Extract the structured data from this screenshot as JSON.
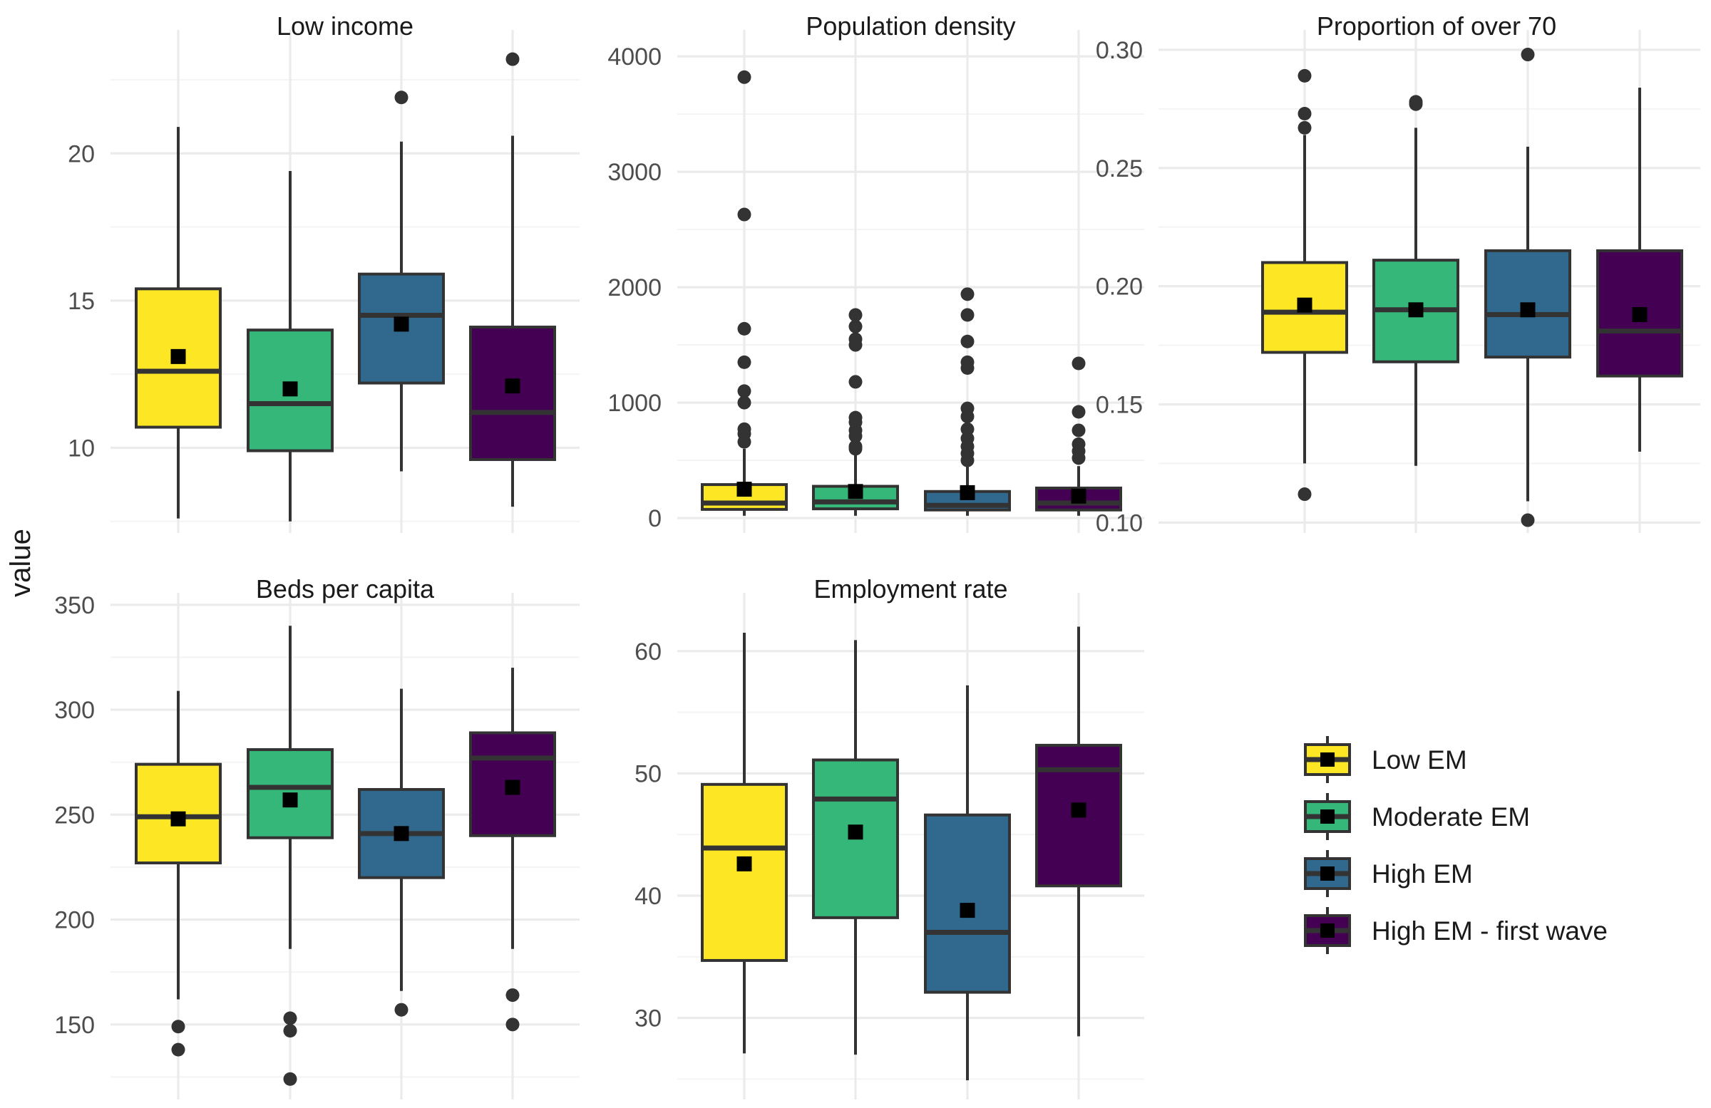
{
  "chart_data": {
    "type": "boxplot",
    "y_axis_title": "value",
    "groups": [
      "Low EM",
      "Moderate EM",
      "High EM",
      "High EM - first wave"
    ],
    "colors": {
      "Low EM": "#FDE725",
      "Moderate EM": "#35B779",
      "High EM": "#31688E",
      "High EM - first wave": "#440154"
    },
    "legend": {
      "position": "right",
      "entries": [
        "Low EM",
        "Moderate EM",
        "High EM",
        "High EM - first wave"
      ]
    },
    "panels": [
      {
        "title": "Low income",
        "ylim": [
          7.3,
          24.0
        ],
        "ticks": [
          10,
          15,
          20
        ],
        "tick_labels": [
          "10",
          "15",
          "20"
        ],
        "series": [
          {
            "group": "Low EM",
            "min": 7.6,
            "q1": 10.7,
            "median": 12.6,
            "q3": 15.4,
            "max": 20.9,
            "mean": 13.1,
            "outliers": []
          },
          {
            "group": "Moderate EM",
            "min": 7.5,
            "q1": 9.9,
            "median": 11.5,
            "q3": 14.0,
            "max": 19.4,
            "mean": 12.0,
            "outliers": []
          },
          {
            "group": "High EM",
            "min": 9.2,
            "q1": 12.2,
            "median": 14.5,
            "q3": 15.9,
            "max": 20.4,
            "mean": 14.2,
            "outliers": [
              21.9
            ]
          },
          {
            "group": "High EM - first wave",
            "min": 8.0,
            "q1": 9.6,
            "median": 11.2,
            "q3": 14.1,
            "max": 20.6,
            "mean": 12.1,
            "outliers": [
              23.2
            ]
          }
        ]
      },
      {
        "title": "Population density",
        "ylim": [
          -80,
          4180
        ],
        "ticks": [
          0,
          1000,
          2000,
          3000,
          4000
        ],
        "tick_labels": [
          "0",
          "1000",
          "2000",
          "3000",
          "4000"
        ],
        "series": [
          {
            "group": "Low EM",
            "min": 20,
            "q1": 75,
            "median": 130,
            "q3": 290,
            "max": 600,
            "mean": 250,
            "outliers": [
              660,
              730,
              770,
              1000,
              1100,
              1350,
              1640,
              2630,
              3820
            ]
          },
          {
            "group": "Moderate EM",
            "min": 20,
            "q1": 80,
            "median": 140,
            "q3": 275,
            "max": 560,
            "mean": 230,
            "outliers": [
              600,
              620,
              710,
              760,
              830,
              870,
              1180,
              1500,
              1550,
              1660,
              1760
            ]
          },
          {
            "group": "High EM",
            "min": 20,
            "q1": 70,
            "median": 110,
            "q3": 230,
            "max": 480,
            "mean": 220,
            "outliers": [
              500,
              560,
              620,
              690,
              770,
              880,
              950,
              1300,
              1350,
              1530,
              1760,
              1940
            ]
          },
          {
            "group": "High EM - first wave",
            "min": 20,
            "q1": 70,
            "median": 130,
            "q3": 260,
            "max": 450,
            "mean": 190,
            "outliers": [
              520,
              580,
              640,
              760,
              920,
              1340
            ]
          }
        ]
      },
      {
        "title": "Proportion of over 70",
        "ylim": [
          0.098,
          0.306
        ],
        "ticks": [
          0.1,
          0.15,
          0.2,
          0.25,
          0.3
        ],
        "tick_labels": [
          "0.10",
          "0.15",
          "0.20",
          "0.25",
          "0.30"
        ],
        "series": [
          {
            "group": "Low EM",
            "min": 0.125,
            "q1": 0.172,
            "median": 0.189,
            "q3": 0.21,
            "max": 0.264,
            "mean": 0.192,
            "outliers": [
              0.112,
              0.267,
              0.273,
              0.289
            ]
          },
          {
            "group": "Moderate EM",
            "min": 0.124,
            "q1": 0.168,
            "median": 0.19,
            "q3": 0.211,
            "max": 0.267,
            "mean": 0.19,
            "outliers": [
              0.277,
              0.278
            ]
          },
          {
            "group": "High EM",
            "min": 0.109,
            "q1": 0.17,
            "median": 0.188,
            "q3": 0.215,
            "max": 0.259,
            "mean": 0.19,
            "outliers": [
              0.101,
              0.298
            ]
          },
          {
            "group": "High EM - first wave",
            "min": 0.13,
            "q1": 0.162,
            "median": 0.181,
            "q3": 0.215,
            "max": 0.284,
            "mean": 0.188,
            "outliers": []
          }
        ]
      },
      {
        "title": "Beds per capita",
        "ylim": [
          117,
          353
        ],
        "ticks": [
          150,
          200,
          250,
          300,
          350
        ],
        "tick_labels": [
          "150",
          "200",
          "250",
          "300",
          "350"
        ],
        "series": [
          {
            "group": "Low EM",
            "min": 162,
            "q1": 227,
            "median": 249,
            "q3": 274,
            "max": 309,
            "mean": 248,
            "outliers": [
              138,
              149
            ]
          },
          {
            "group": "Moderate EM",
            "min": 186,
            "q1": 239,
            "median": 263,
            "q3": 281,
            "max": 340,
            "mean": 257,
            "outliers": [
              124,
              147,
              153
            ]
          },
          {
            "group": "High EM",
            "min": 166,
            "q1": 220,
            "median": 241,
            "q3": 262,
            "max": 310,
            "mean": 241,
            "outliers": [
              157
            ]
          },
          {
            "group": "High EM - first wave",
            "min": 186,
            "q1": 240,
            "median": 277,
            "q3": 289,
            "max": 320,
            "mean": 263,
            "outliers": [
              150,
              164
            ]
          }
        ]
      },
      {
        "title": "Employment rate",
        "ylim": [
          23.8,
          64.3
        ],
        "ticks": [
          30,
          40,
          50,
          60
        ],
        "tick_labels": [
          "30",
          "40",
          "50",
          "60"
        ],
        "series": [
          {
            "group": "Low EM",
            "min": 27.1,
            "q1": 34.7,
            "median": 43.9,
            "q3": 49.1,
            "max": 61.5,
            "mean": 42.6,
            "outliers": []
          },
          {
            "group": "Moderate EM",
            "min": 27.0,
            "q1": 38.2,
            "median": 47.9,
            "q3": 51.1,
            "max": 60.9,
            "mean": 45.2,
            "outliers": []
          },
          {
            "group": "High EM",
            "min": 24.9,
            "q1": 32.1,
            "median": 37.0,
            "q3": 46.6,
            "max": 57.2,
            "mean": 38.8,
            "outliers": []
          },
          {
            "group": "High EM - first wave",
            "min": 28.5,
            "q1": 40.8,
            "median": 50.3,
            "q3": 52.3,
            "max": 62.0,
            "mean": 47.0,
            "outliers": []
          }
        ]
      }
    ]
  }
}
